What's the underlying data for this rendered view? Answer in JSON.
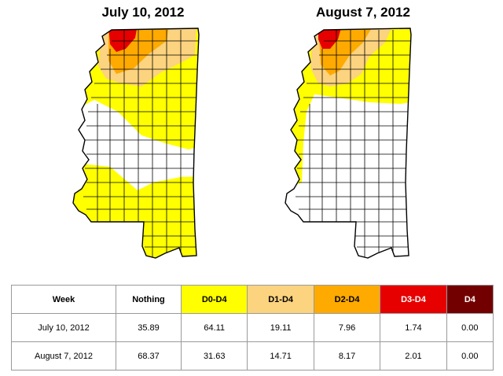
{
  "maps": [
    {
      "title": "July 10, 2012"
    },
    {
      "title": "August 7, 2012"
    }
  ],
  "colors": {
    "nothing": "#ffffff",
    "d0": "#ffff00",
    "d1": "#fcd37f",
    "d2": "#ffaa00",
    "d3": "#e60000",
    "d4": "#730000",
    "county_lines": "#000000"
  },
  "table": {
    "headers": [
      {
        "label": "Week",
        "color": "#ffffff",
        "text_color": "#000000"
      },
      {
        "label": "Nothing",
        "color": "#ffffff",
        "text_color": "#000000"
      },
      {
        "label": "D0-D4",
        "color": "#ffff00",
        "text_color": "#000000"
      },
      {
        "label": "D1-D4",
        "color": "#fcd37f",
        "text_color": "#000000"
      },
      {
        "label": "D2-D4",
        "color": "#ffaa00",
        "text_color": "#000000"
      },
      {
        "label": "D3-D4",
        "color": "#e60000",
        "text_color": "#ffffff"
      },
      {
        "label": "D4",
        "color": "#730000",
        "text_color": "#ffffff"
      }
    ],
    "rows": [
      {
        "week": "July 10, 2012",
        "nothing": "35.89",
        "d0_d4": "64.11",
        "d1_d4": "19.11",
        "d2_d4": "7.96",
        "d3_d4": "1.74",
        "d4": "0.00"
      },
      {
        "week": "August 7, 2012",
        "nothing": "68.37",
        "d0_d4": "31.63",
        "d1_d4": "14.71",
        "d2_d4": "8.17",
        "d3_d4": "2.01",
        "d4": "0.00"
      }
    ]
  }
}
